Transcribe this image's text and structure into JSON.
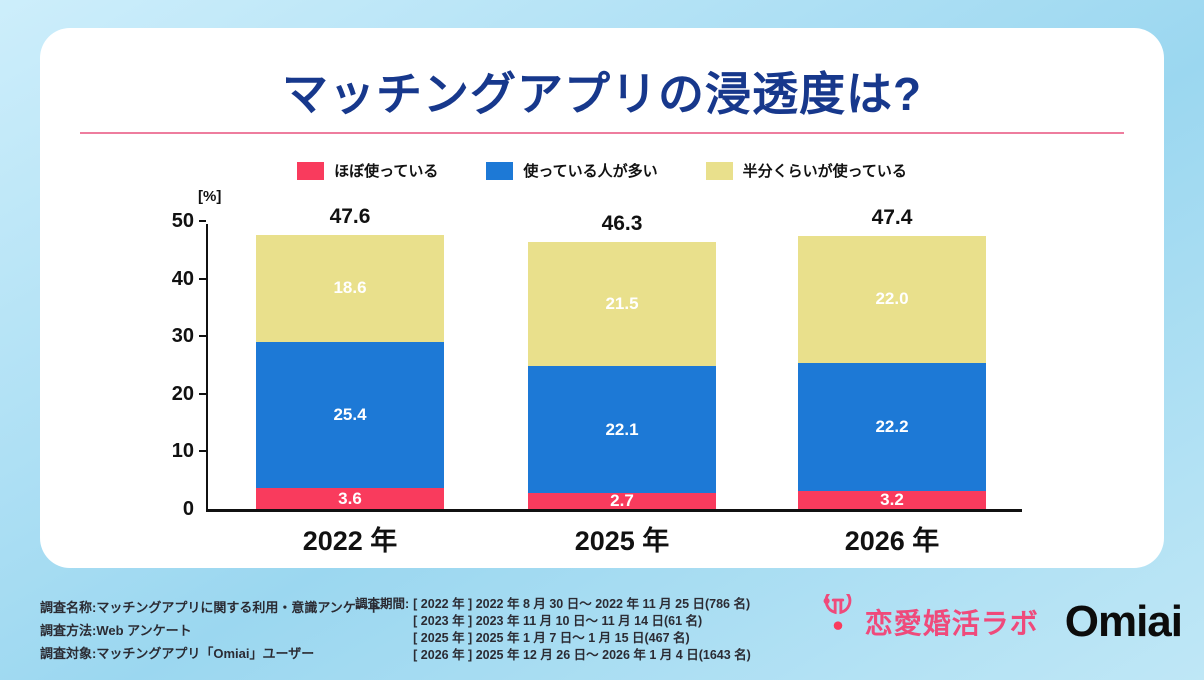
{
  "page": {
    "title": "マッチングアプリの浸透度は?",
    "unit_label": "[%]"
  },
  "chart_data": {
    "type": "bar",
    "stacked": true,
    "title": "マッチングアプリの浸透度は?",
    "ylabel": "[%]",
    "ylim": [
      0,
      50
    ],
    "yticks": [
      0,
      10,
      20,
      30,
      40,
      50
    ],
    "categories": [
      "2022 年",
      "2025 年",
      "2026 年"
    ],
    "series": [
      {
        "name": "ほぼ使っている",
        "color": "#f93b5d",
        "values": [
          3.6,
          2.7,
          3.2
        ]
      },
      {
        "name": "使っている人が多い",
        "color": "#1d79d6",
        "values": [
          25.4,
          22.1,
          22.2
        ]
      },
      {
        "name": "半分くらいが使っている",
        "color": "#e9e08c",
        "values": [
          18.6,
          21.5,
          22.0
        ]
      }
    ],
    "totals": [
      47.6,
      46.3,
      47.4
    ],
    "legend_position": "top",
    "grid": false
  },
  "footer": {
    "left_lines": [
      "調査名称:マッチングアプリに関する利用・意識アンケート",
      "調査方法:Web アンケート",
      "調査対象:マッチングアプリ「Omiai」ユーザー"
    ],
    "period_label": "調査期間:",
    "periods": [
      "[ 2022 年 ] 2022 年 8 月 30 日〜 2022 年 11 月 25 日(786 名)",
      "[ 2023 年 ] 2023 年 11 月 10 日〜 11 月 14 日(61 名)",
      "[ 2025 年 ] 2025 年 1 月 7 日〜 1 月 15 日(467 名)",
      "[ 2026 年 ] 2025 年 12 月 26 日〜 2026 年 1 月 4 日(1643 名)"
    ],
    "logo_lab": "恋愛婚活ラボ",
    "logo_omiai": "Omiai"
  },
  "colors": {
    "title_navy": "#17388c",
    "divider_pink": "#ee7d9e",
    "lab_pink": "#ef4a7b",
    "axis_black": "#111111"
  }
}
